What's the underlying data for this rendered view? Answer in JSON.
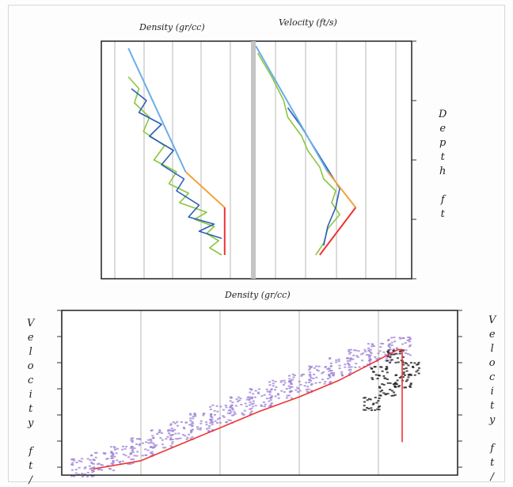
{
  "chart_data": [
    {
      "type": "line",
      "title": "Density (gr/cc)",
      "xlabel": "Density (gr/cc)",
      "xlim": [
        1.8,
        2.8
      ],
      "ylim": [
        0,
        10000
      ],
      "y_inverted": true,
      "grid": true,
      "series": [
        {
          "color": "#8cc63f",
          "x": [
            1.98,
            2.05,
            2.02,
            2.12,
            2.08,
            2.22,
            2.15,
            2.3,
            2.25,
            2.38,
            2.32,
            2.5,
            2.42,
            2.55,
            2.5,
            2.58,
            2.52,
            2.6
          ],
          "y": [
            1500,
            2000,
            2600,
            3200,
            3800,
            4400,
            5000,
            5500,
            6000,
            6400,
            6800,
            7200,
            7500,
            7800,
            8100,
            8400,
            8700,
            9000
          ]
        },
        {
          "color": "#2b5fb8",
          "x": [
            2.0,
            2.1,
            2.05,
            2.2,
            2.12,
            2.28,
            2.2,
            2.35,
            2.3,
            2.45,
            2.38,
            2.55,
            2.45,
            2.6
          ],
          "y": [
            2000,
            2500,
            3000,
            3500,
            4000,
            4600,
            5200,
            5800,
            6300,
            6900,
            7400,
            7700,
            8000,
            8300
          ]
        },
        {
          "color": "#6aaee6",
          "x": [
            1.98,
            2.36
          ],
          "y": [
            300,
            5500
          ]
        },
        {
          "color": "#f2a33a",
          "x": [
            2.36,
            2.62
          ],
          "y": [
            5500,
            7000
          ]
        },
        {
          "color": "#ee3333",
          "x": [
            2.62,
            2.62
          ],
          "y": [
            7000,
            9000
          ]
        }
      ]
    },
    {
      "type": "line",
      "title": "Velocity (ft/s)",
      "xlim": [
        6000,
        14000
      ],
      "ylim": [
        0,
        10000
      ],
      "y_inverted": true,
      "y_ticks": [
        0,
        2500,
        5000,
        7500,
        10000
      ],
      "ylabel": "Depth ft",
      "grid": true,
      "series": [
        {
          "color": "#8cc63f",
          "x": [
            6300,
            7000,
            7600,
            7800,
            8500,
            8800,
            9400,
            9600,
            10200,
            10000,
            10400,
            9800,
            9600,
            9200
          ],
          "y": [
            500,
            1500,
            2500,
            3200,
            4000,
            4600,
            5300,
            5800,
            6300,
            6800,
            7300,
            7900,
            8500,
            9000
          ]
        },
        {
          "color": "#2b5fb8",
          "x": [
            7800,
            8400,
            9000,
            10400,
            10200,
            9800,
            9600
          ],
          "y": [
            2800,
            3500,
            4300,
            6200,
            7000,
            7800,
            8600
          ]
        },
        {
          "color": "#6aaee6",
          "x": [
            6200,
            9800
          ],
          "y": [
            200,
            5500
          ]
        },
        {
          "color": "#f2a33a",
          "x": [
            9800,
            11200
          ],
          "y": [
            5500,
            7000
          ]
        },
        {
          "color": "#ee3333",
          "x": [
            11200,
            9400
          ],
          "y": [
            7000,
            9000
          ]
        }
      ]
    },
    {
      "type": "scatter",
      "title": "Density (gr/cc)",
      "xlabel": "Density (gr/cc)",
      "ylabel": "Velocity ft/s",
      "xlim": [
        1.8,
        2.8
      ],
      "ylim": [
        6000,
        14000
      ],
      "grid": true,
      "series": [
        {
          "color": "#9b7fd4",
          "x": [
            1.85,
            1.9,
            1.95,
            2.0,
            2.05,
            2.1,
            2.15,
            2.2,
            2.25,
            2.3,
            2.35,
            2.4,
            2.45,
            2.5,
            2.55,
            2.6,
            2.65
          ],
          "y": [
            6400,
            6700,
            7000,
            7400,
            7800,
            8200,
            8600,
            9000,
            9400,
            9800,
            10200,
            10500,
            10900,
            11300,
            11700,
            12000,
            12300
          ]
        },
        {
          "color": "#111111",
          "x": [
            2.58,
            2.6,
            2.62,
            2.64,
            2.66,
            2.68
          ],
          "y": [
            9500,
            11000,
            10200,
            11800,
            10600,
            11200
          ]
        },
        {
          "color": "#ee3333",
          "x": [
            1.88,
            2.0,
            2.1,
            2.2,
            2.3,
            2.4,
            2.5,
            2.6,
            2.65,
            2.66,
            2.66
          ],
          "y": [
            6300,
            6700,
            7500,
            8300,
            9100,
            9800,
            10600,
            11600,
            12100,
            12100,
            7600
          ]
        }
      ]
    }
  ]
}
